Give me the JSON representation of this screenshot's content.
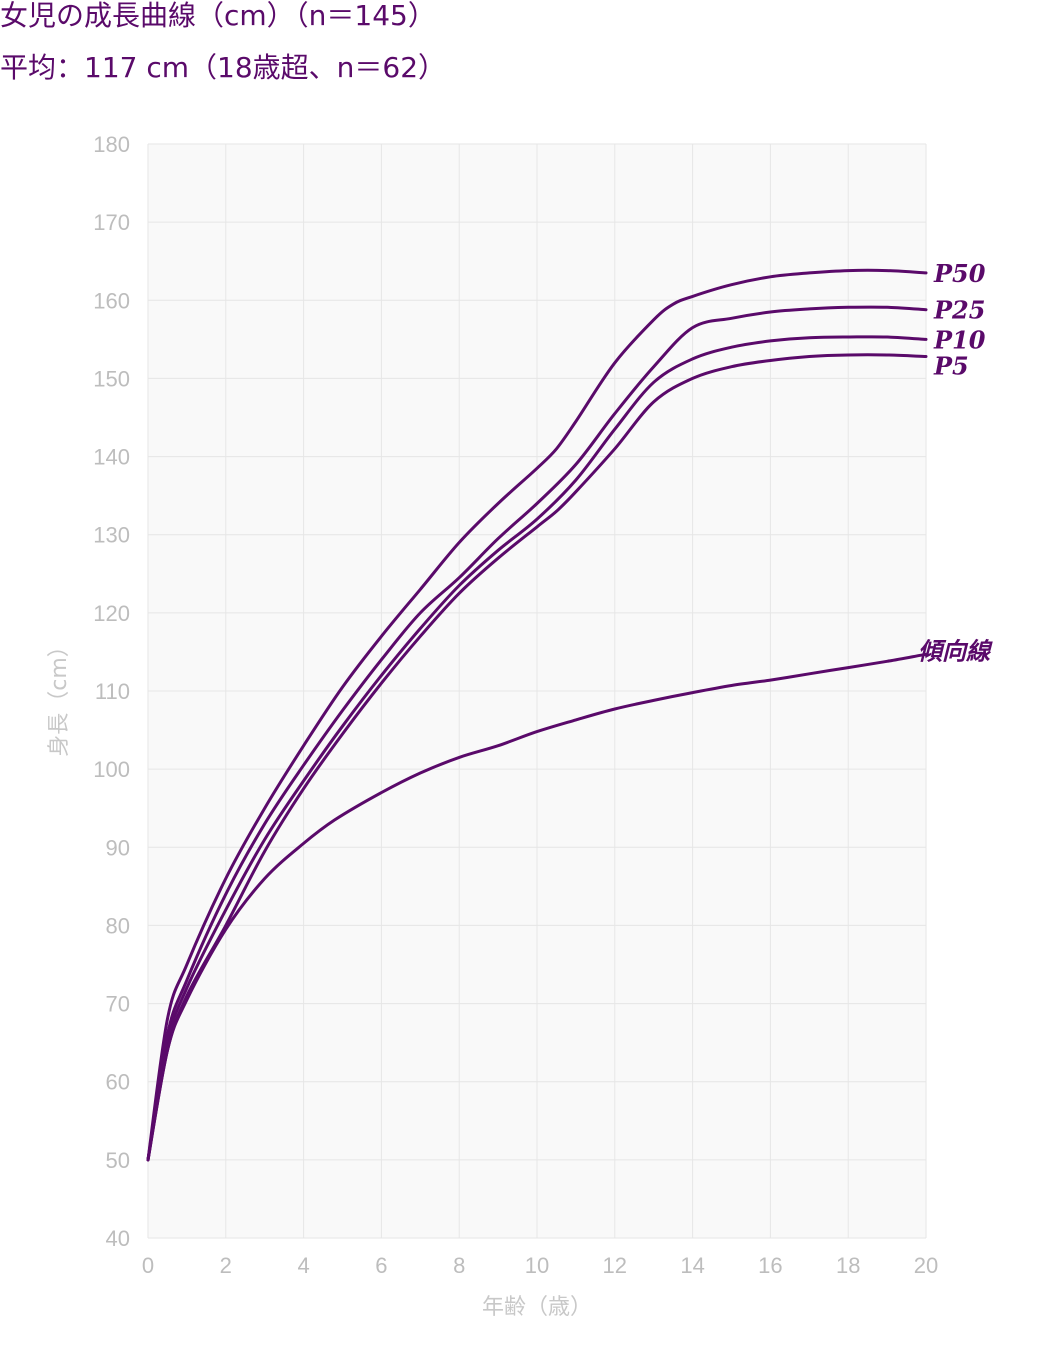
{
  "header": {
    "title": "女児の成長曲線（cm）（n＝145）",
    "subtitle": "平均：117 cm（18歳超、n＝62）"
  },
  "colors": {
    "line": "#5a0a6a",
    "plot_bg": "#f9f9f9",
    "grid": "#e6e6e6",
    "tick_text": "#bdbdbd"
  },
  "chart_data": {
    "type": "line",
    "title": "女児の成長曲線（cm）（n＝145）",
    "subtitle": "平均：117 cm（18歳超、n＝62）",
    "xlabel": "年齢（歳）",
    "ylabel": "身長（cm）",
    "xlim": [
      0,
      20
    ],
    "ylim": [
      40,
      180
    ],
    "xticks": [
      0,
      2,
      4,
      6,
      8,
      10,
      12,
      14,
      16,
      18,
      20
    ],
    "yticks": [
      40,
      50,
      60,
      70,
      80,
      90,
      100,
      110,
      120,
      130,
      140,
      150,
      160,
      170,
      180
    ],
    "grid": true,
    "legend": "inline labels at right end of lines",
    "series": [
      {
        "name": "P50",
        "x": [
          0,
          0.5,
          1,
          2,
          3,
          4,
          5,
          6,
          7,
          8,
          9,
          10,
          10.5,
          11,
          12,
          13,
          13.5,
          14,
          15,
          16,
          17,
          18,
          19,
          20
        ],
        "y": [
          50,
          68,
          75,
          86,
          95,
          103,
          110.5,
          117,
          123,
          129,
          134,
          138.5,
          141,
          144.5,
          152,
          157.5,
          159.5,
          160.5,
          162,
          163,
          163.5,
          163.8,
          163.8,
          163.5
        ]
      },
      {
        "name": "P25",
        "x": [
          0,
          0.5,
          1,
          2,
          3,
          4,
          5,
          6,
          7,
          8,
          9,
          10,
          11,
          12,
          13,
          14,
          15,
          16,
          17,
          18,
          19,
          20
        ],
        "y": [
          50,
          66,
          73,
          84,
          93,
          100.5,
          107.5,
          114,
          120,
          124.5,
          129.5,
          134,
          139,
          145.5,
          151.5,
          156.5,
          157.7,
          158.5,
          158.9,
          159.1,
          159.1,
          158.8
        ]
      },
      {
        "name": "P10",
        "x": [
          0,
          0.5,
          1,
          2,
          3,
          4,
          5,
          6,
          7,
          8,
          9,
          10,
          11,
          12,
          13,
          14,
          15,
          16,
          17,
          18,
          19,
          20
        ],
        "y": [
          50,
          65,
          72,
          82,
          91,
          98.5,
          105.5,
          112,
          118,
          123.5,
          128,
          132,
          137,
          143.5,
          149.5,
          152.5,
          154,
          154.8,
          155.2,
          155.3,
          155.3,
          155
        ]
      },
      {
        "name": "P5",
        "x": [
          0,
          0.5,
          1,
          2,
          3,
          4,
          5,
          6,
          7,
          8,
          9,
          10,
          10.5,
          11,
          12,
          13,
          14,
          15,
          16,
          17,
          18,
          19,
          20
        ],
        "y": [
          50,
          64,
          71,
          80,
          89.5,
          97.5,
          104.5,
          111,
          117,
          122.5,
          127,
          131,
          133,
          135.5,
          141,
          147,
          150,
          151.5,
          152.3,
          152.8,
          153,
          153,
          152.8
        ]
      },
      {
        "name": "傾向線",
        "x": [
          0,
          0.5,
          1,
          2,
          3,
          4,
          4.8,
          6,
          7,
          8,
          9,
          10,
          11,
          12,
          13,
          14,
          15,
          16,
          17,
          18,
          19,
          20
        ],
        "y": [
          50,
          64,
          70.5,
          79.5,
          86,
          90.5,
          93.5,
          97,
          99.5,
          101.5,
          103,
          104.8,
          106.3,
          107.7,
          108.8,
          109.8,
          110.7,
          111.4,
          112.2,
          113,
          113.8,
          114.7
        ]
      }
    ]
  }
}
